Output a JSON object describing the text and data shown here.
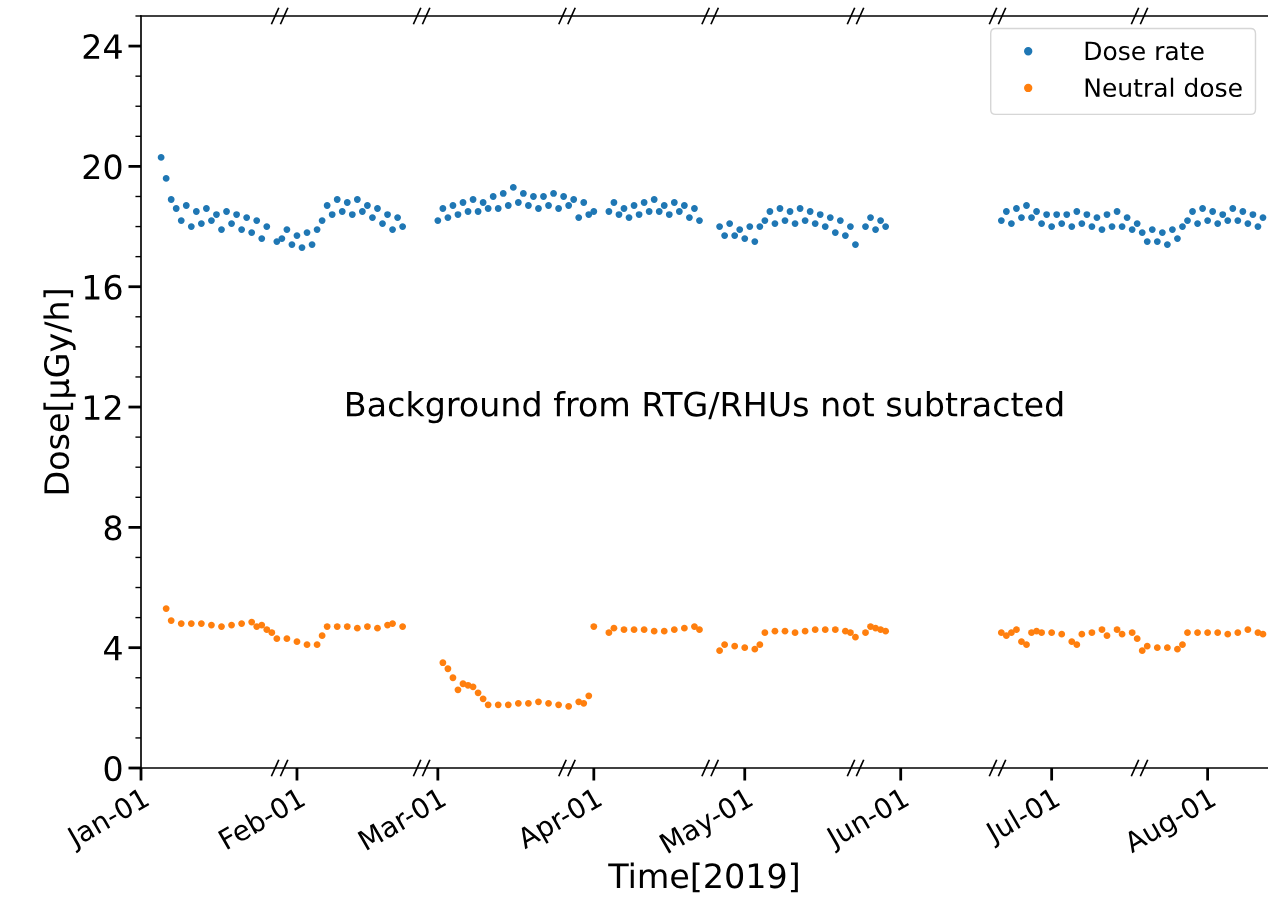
{
  "chart_data": {
    "type": "scatter",
    "xlabel": "Time[2019]",
    "ylabel": "Dose[μGy/h]",
    "annotations": [
      "Background from RTG/RHUs not subtracted"
    ],
    "legend": "top right",
    "marker": "circle",
    "xlim": [
      "2019-01-01",
      "2019-08-13"
    ],
    "xticks": [
      {
        "value": "2019-01-01",
        "label": "Jan-01"
      },
      {
        "value": "2019-02-01",
        "label": "Feb-01"
      },
      {
        "value": "2019-03-01",
        "label": "Mar-01"
      },
      {
        "value": "2019-04-01",
        "label": "Apr-01"
      },
      {
        "value": "2019-05-01",
        "label": "May-01"
      },
      {
        "value": "2019-06-01",
        "label": "Jun-01"
      },
      {
        "value": "2019-07-01",
        "label": "Jul-01"
      },
      {
        "value": "2019-08-01",
        "label": "Aug-01"
      }
    ],
    "ylim": [
      0,
      25
    ],
    "yticks": [
      0,
      {
        "value": 1,
        "label": null
      },
      {
        "value": 2,
        "label": null
      },
      {
        "value": 3,
        "label": null
      },
      4,
      {
        "value": 5,
        "label": null
      },
      {
        "value": 6,
        "label": null
      },
      {
        "value": 7,
        "label": null
      },
      8,
      {
        "value": 9,
        "label": null
      },
      {
        "value": 10,
        "label": null
      },
      {
        "value": 11,
        "label": null
      },
      12,
      {
        "value": 13,
        "label": null
      },
      {
        "value": 14,
        "label": null
      },
      {
        "value": 15,
        "label": null
      },
      16,
      {
        "value": 17,
        "label": null
      },
      {
        "value": 18,
        "label": null
      },
      {
        "value": 19,
        "label": null
      },
      20,
      {
        "value": 21,
        "label": null
      },
      {
        "value": 22,
        "label": null
      },
      {
        "value": 23,
        "label": null
      },
      24,
      {
        "value": 25,
        "label": null
      }
    ],
    "series": [
      {
        "name": "Dose rate",
        "color": "#1f77b4",
        "x": [
          "2019-01-05",
          "2019-01-06",
          "2019-01-07",
          "2019-01-08",
          "2019-01-09",
          "2019-01-10",
          "2019-01-11",
          "2019-01-12",
          "2019-01-13",
          "2019-01-14",
          "2019-01-15",
          "2019-01-16",
          "2019-01-17",
          "2019-01-18",
          "2019-01-19",
          "2019-01-20",
          "2019-01-21",
          "2019-01-22",
          "2019-01-23",
          "2019-01-24",
          "2019-01-25",
          "2019-01-26",
          "2019-01-28",
          "2019-01-29",
          "2019-01-30",
          "2019-01-31",
          "2019-02-01",
          "2019-02-02",
          "2019-02-03",
          "2019-02-04",
          "2019-02-05",
          "2019-02-06",
          "2019-02-07",
          "2019-02-08",
          "2019-02-09",
          "2019-02-10",
          "2019-02-11",
          "2019-02-12",
          "2019-02-13",
          "2019-02-14",
          "2019-02-15",
          "2019-02-16",
          "2019-02-17",
          "2019-02-18",
          "2019-02-19",
          "2019-02-20",
          "2019-02-21",
          "2019-02-22",
          "2019-03-01",
          "2019-03-02",
          "2019-03-03",
          "2019-03-04",
          "2019-03-05",
          "2019-03-06",
          "2019-03-07",
          "2019-03-08",
          "2019-03-09",
          "2019-03-10",
          "2019-03-11",
          "2019-03-12",
          "2019-03-13",
          "2019-03-14",
          "2019-03-15",
          "2019-03-16",
          "2019-03-17",
          "2019-03-18",
          "2019-03-19",
          "2019-03-20",
          "2019-03-21",
          "2019-03-22",
          "2019-03-23",
          "2019-03-24",
          "2019-03-25",
          "2019-03-26",
          "2019-03-27",
          "2019-03-28",
          "2019-03-29",
          "2019-03-30",
          "2019-03-31",
          "2019-04-01",
          "2019-04-04",
          "2019-04-05",
          "2019-04-06",
          "2019-04-07",
          "2019-04-08",
          "2019-04-09",
          "2019-04-10",
          "2019-04-11",
          "2019-04-12",
          "2019-04-13",
          "2019-04-14",
          "2019-04-15",
          "2019-04-16",
          "2019-04-17",
          "2019-04-18",
          "2019-04-19",
          "2019-04-20",
          "2019-04-21",
          "2019-04-22",
          "2019-04-26",
          "2019-04-27",
          "2019-04-28",
          "2019-04-29",
          "2019-04-30",
          "2019-05-01",
          "2019-05-02",
          "2019-05-03",
          "2019-05-04",
          "2019-05-05",
          "2019-05-06",
          "2019-05-07",
          "2019-05-08",
          "2019-05-09",
          "2019-05-10",
          "2019-05-11",
          "2019-05-12",
          "2019-05-13",
          "2019-05-14",
          "2019-05-15",
          "2019-05-16",
          "2019-05-17",
          "2019-05-18",
          "2019-05-19",
          "2019-05-20",
          "2019-05-21",
          "2019-05-22",
          "2019-05-23",
          "2019-05-25",
          "2019-05-26",
          "2019-05-27",
          "2019-05-28",
          "2019-05-29",
          "2019-06-21",
          "2019-06-22",
          "2019-06-23",
          "2019-06-24",
          "2019-06-25",
          "2019-06-26",
          "2019-06-27",
          "2019-06-28",
          "2019-06-29",
          "2019-06-30",
          "2019-07-01",
          "2019-07-02",
          "2019-07-03",
          "2019-07-04",
          "2019-07-05",
          "2019-07-06",
          "2019-07-07",
          "2019-07-08",
          "2019-07-09",
          "2019-07-10",
          "2019-07-11",
          "2019-07-12",
          "2019-07-13",
          "2019-07-14",
          "2019-07-15",
          "2019-07-16",
          "2019-07-17",
          "2019-07-18",
          "2019-07-19",
          "2019-07-20",
          "2019-07-21",
          "2019-07-22",
          "2019-07-23",
          "2019-07-24",
          "2019-07-25",
          "2019-07-26",
          "2019-07-27",
          "2019-07-28",
          "2019-07-29",
          "2019-07-30",
          "2019-07-31",
          "2019-08-01",
          "2019-08-02",
          "2019-08-03",
          "2019-08-04",
          "2019-08-05",
          "2019-08-06",
          "2019-08-07",
          "2019-08-08",
          "2019-08-09",
          "2019-08-10",
          "2019-08-11",
          "2019-08-12"
        ],
        "values": [
          20.3,
          19.6,
          18.9,
          18.6,
          18.2,
          18.7,
          18.0,
          18.5,
          18.1,
          18.6,
          18.2,
          18.4,
          17.9,
          18.5,
          18.1,
          18.4,
          17.9,
          18.3,
          17.8,
          18.2,
          17.6,
          18.0,
          17.5,
          17.6,
          17.9,
          17.4,
          17.7,
          17.3,
          17.8,
          17.4,
          17.9,
          18.2,
          18.7,
          18.4,
          18.9,
          18.5,
          18.8,
          18.4,
          18.9,
          18.5,
          18.7,
          18.3,
          18.6,
          18.1,
          18.4,
          17.9,
          18.3,
          18.0,
          18.2,
          18.6,
          18.3,
          18.7,
          18.4,
          18.8,
          18.5,
          18.9,
          18.5,
          18.8,
          18.6,
          19.0,
          18.6,
          19.1,
          18.7,
          19.3,
          18.8,
          19.1,
          18.7,
          19.0,
          18.6,
          19.0,
          18.7,
          19.1,
          18.6,
          19.0,
          18.7,
          18.9,
          18.3,
          18.8,
          18.4,
          18.5,
          18.5,
          18.8,
          18.4,
          18.6,
          18.3,
          18.7,
          18.4,
          18.8,
          18.5,
          18.9,
          18.5,
          18.7,
          18.4,
          18.8,
          18.5,
          18.7,
          18.3,
          18.6,
          18.2,
          18.0,
          17.7,
          18.1,
          17.7,
          17.9,
          17.6,
          18.0,
          17.5,
          18.0,
          18.2,
          18.5,
          18.1,
          18.6,
          18.2,
          18.5,
          18.1,
          18.6,
          18.2,
          18.5,
          18.1,
          18.4,
          18.0,
          18.3,
          17.8,
          18.2,
          17.7,
          18.0,
          17.4,
          18.0,
          18.3,
          17.9,
          18.2,
          18.0,
          18.2,
          18.5,
          18.1,
          18.6,
          18.3,
          18.7,
          18.3,
          18.5,
          18.1,
          18.4,
          18.0,
          18.4,
          18.1,
          18.4,
          18.0,
          18.5,
          18.1,
          18.4,
          18.0,
          18.3,
          17.9,
          18.4,
          18.0,
          18.5,
          18.0,
          18.3,
          17.9,
          18.1,
          17.8,
          17.5,
          17.9,
          17.5,
          17.8,
          17.4,
          17.9,
          17.6,
          18.0,
          18.2,
          18.5,
          18.1,
          18.6,
          18.2,
          18.5,
          18.1,
          18.4,
          18.2,
          18.6,
          18.2,
          18.5,
          18.1,
          18.4,
          18.0,
          18.3
        ]
      },
      {
        "name": "Neutral dose",
        "color": "#ff7f0e",
        "x": [
          "2019-01-06",
          "2019-01-07",
          "2019-01-09",
          "2019-01-11",
          "2019-01-13",
          "2019-01-15",
          "2019-01-17",
          "2019-01-19",
          "2019-01-21",
          "2019-01-23",
          "2019-01-24",
          "2019-01-25",
          "2019-01-26",
          "2019-01-27",
          "2019-01-28",
          "2019-01-30",
          "2019-02-01",
          "2019-02-03",
          "2019-02-05",
          "2019-02-06",
          "2019-02-07",
          "2019-02-09",
          "2019-02-11",
          "2019-02-13",
          "2019-02-15",
          "2019-02-17",
          "2019-02-19",
          "2019-02-20",
          "2019-02-22",
          "2019-03-02",
          "2019-03-03",
          "2019-03-04",
          "2019-03-05",
          "2019-03-06",
          "2019-03-07",
          "2019-03-08",
          "2019-03-09",
          "2019-03-10",
          "2019-03-11",
          "2019-03-13",
          "2019-03-15",
          "2019-03-17",
          "2019-03-19",
          "2019-03-21",
          "2019-03-23",
          "2019-03-25",
          "2019-03-27",
          "2019-03-29",
          "2019-03-30",
          "2019-03-31",
          "2019-04-01",
          "2019-04-04",
          "2019-04-05",
          "2019-04-07",
          "2019-04-09",
          "2019-04-11",
          "2019-04-13",
          "2019-04-15",
          "2019-04-17",
          "2019-04-19",
          "2019-04-21",
          "2019-04-22",
          "2019-04-26",
          "2019-04-27",
          "2019-04-29",
          "2019-05-01",
          "2019-05-03",
          "2019-05-04",
          "2019-05-05",
          "2019-05-07",
          "2019-05-09",
          "2019-05-11",
          "2019-05-13",
          "2019-05-15",
          "2019-05-17",
          "2019-05-19",
          "2019-05-21",
          "2019-05-22",
          "2019-05-23",
          "2019-05-25",
          "2019-05-26",
          "2019-05-27",
          "2019-05-28",
          "2019-05-29",
          "2019-06-21",
          "2019-06-22",
          "2019-06-23",
          "2019-06-24",
          "2019-06-25",
          "2019-06-26",
          "2019-06-27",
          "2019-06-28",
          "2019-06-29",
          "2019-07-01",
          "2019-07-03",
          "2019-07-05",
          "2019-07-06",
          "2019-07-07",
          "2019-07-09",
          "2019-07-11",
          "2019-07-12",
          "2019-07-14",
          "2019-07-15",
          "2019-07-17",
          "2019-07-18",
          "2019-07-19",
          "2019-07-20",
          "2019-07-22",
          "2019-07-24",
          "2019-07-26",
          "2019-07-27",
          "2019-07-28",
          "2019-07-30",
          "2019-08-01",
          "2019-08-03",
          "2019-08-05",
          "2019-08-07",
          "2019-08-09",
          "2019-08-11",
          "2019-08-12"
        ],
        "values": [
          5.3,
          4.9,
          4.8,
          4.8,
          4.8,
          4.75,
          4.7,
          4.75,
          4.8,
          4.85,
          4.7,
          4.75,
          4.6,
          4.5,
          4.3,
          4.3,
          4.2,
          4.1,
          4.1,
          4.4,
          4.7,
          4.7,
          4.7,
          4.65,
          4.7,
          4.65,
          4.75,
          4.8,
          4.7,
          3.5,
          3.3,
          3.0,
          2.6,
          2.8,
          2.75,
          2.7,
          2.5,
          2.3,
          2.1,
          2.1,
          2.1,
          2.15,
          2.15,
          2.2,
          2.15,
          2.1,
          2.05,
          2.2,
          2.15,
          2.4,
          4.7,
          4.5,
          4.65,
          4.6,
          4.6,
          4.6,
          4.55,
          4.55,
          4.6,
          4.65,
          4.7,
          4.6,
          3.9,
          4.1,
          4.05,
          4.0,
          3.95,
          4.1,
          4.5,
          4.55,
          4.55,
          4.5,
          4.55,
          4.6,
          4.6,
          4.6,
          4.55,
          4.5,
          4.35,
          4.5,
          4.7,
          4.65,
          4.6,
          4.55,
          4.5,
          4.4,
          4.5,
          4.6,
          4.2,
          4.1,
          4.5,
          4.55,
          4.5,
          4.5,
          4.45,
          4.2,
          4.1,
          4.45,
          4.5,
          4.6,
          4.4,
          4.6,
          4.45,
          4.5,
          4.3,
          3.9,
          4.05,
          4.0,
          4.0,
          3.95,
          4.1,
          4.5,
          4.5,
          4.5,
          4.5,
          4.45,
          4.5,
          4.6,
          4.5,
          4.45
        ]
      }
    ]
  }
}
